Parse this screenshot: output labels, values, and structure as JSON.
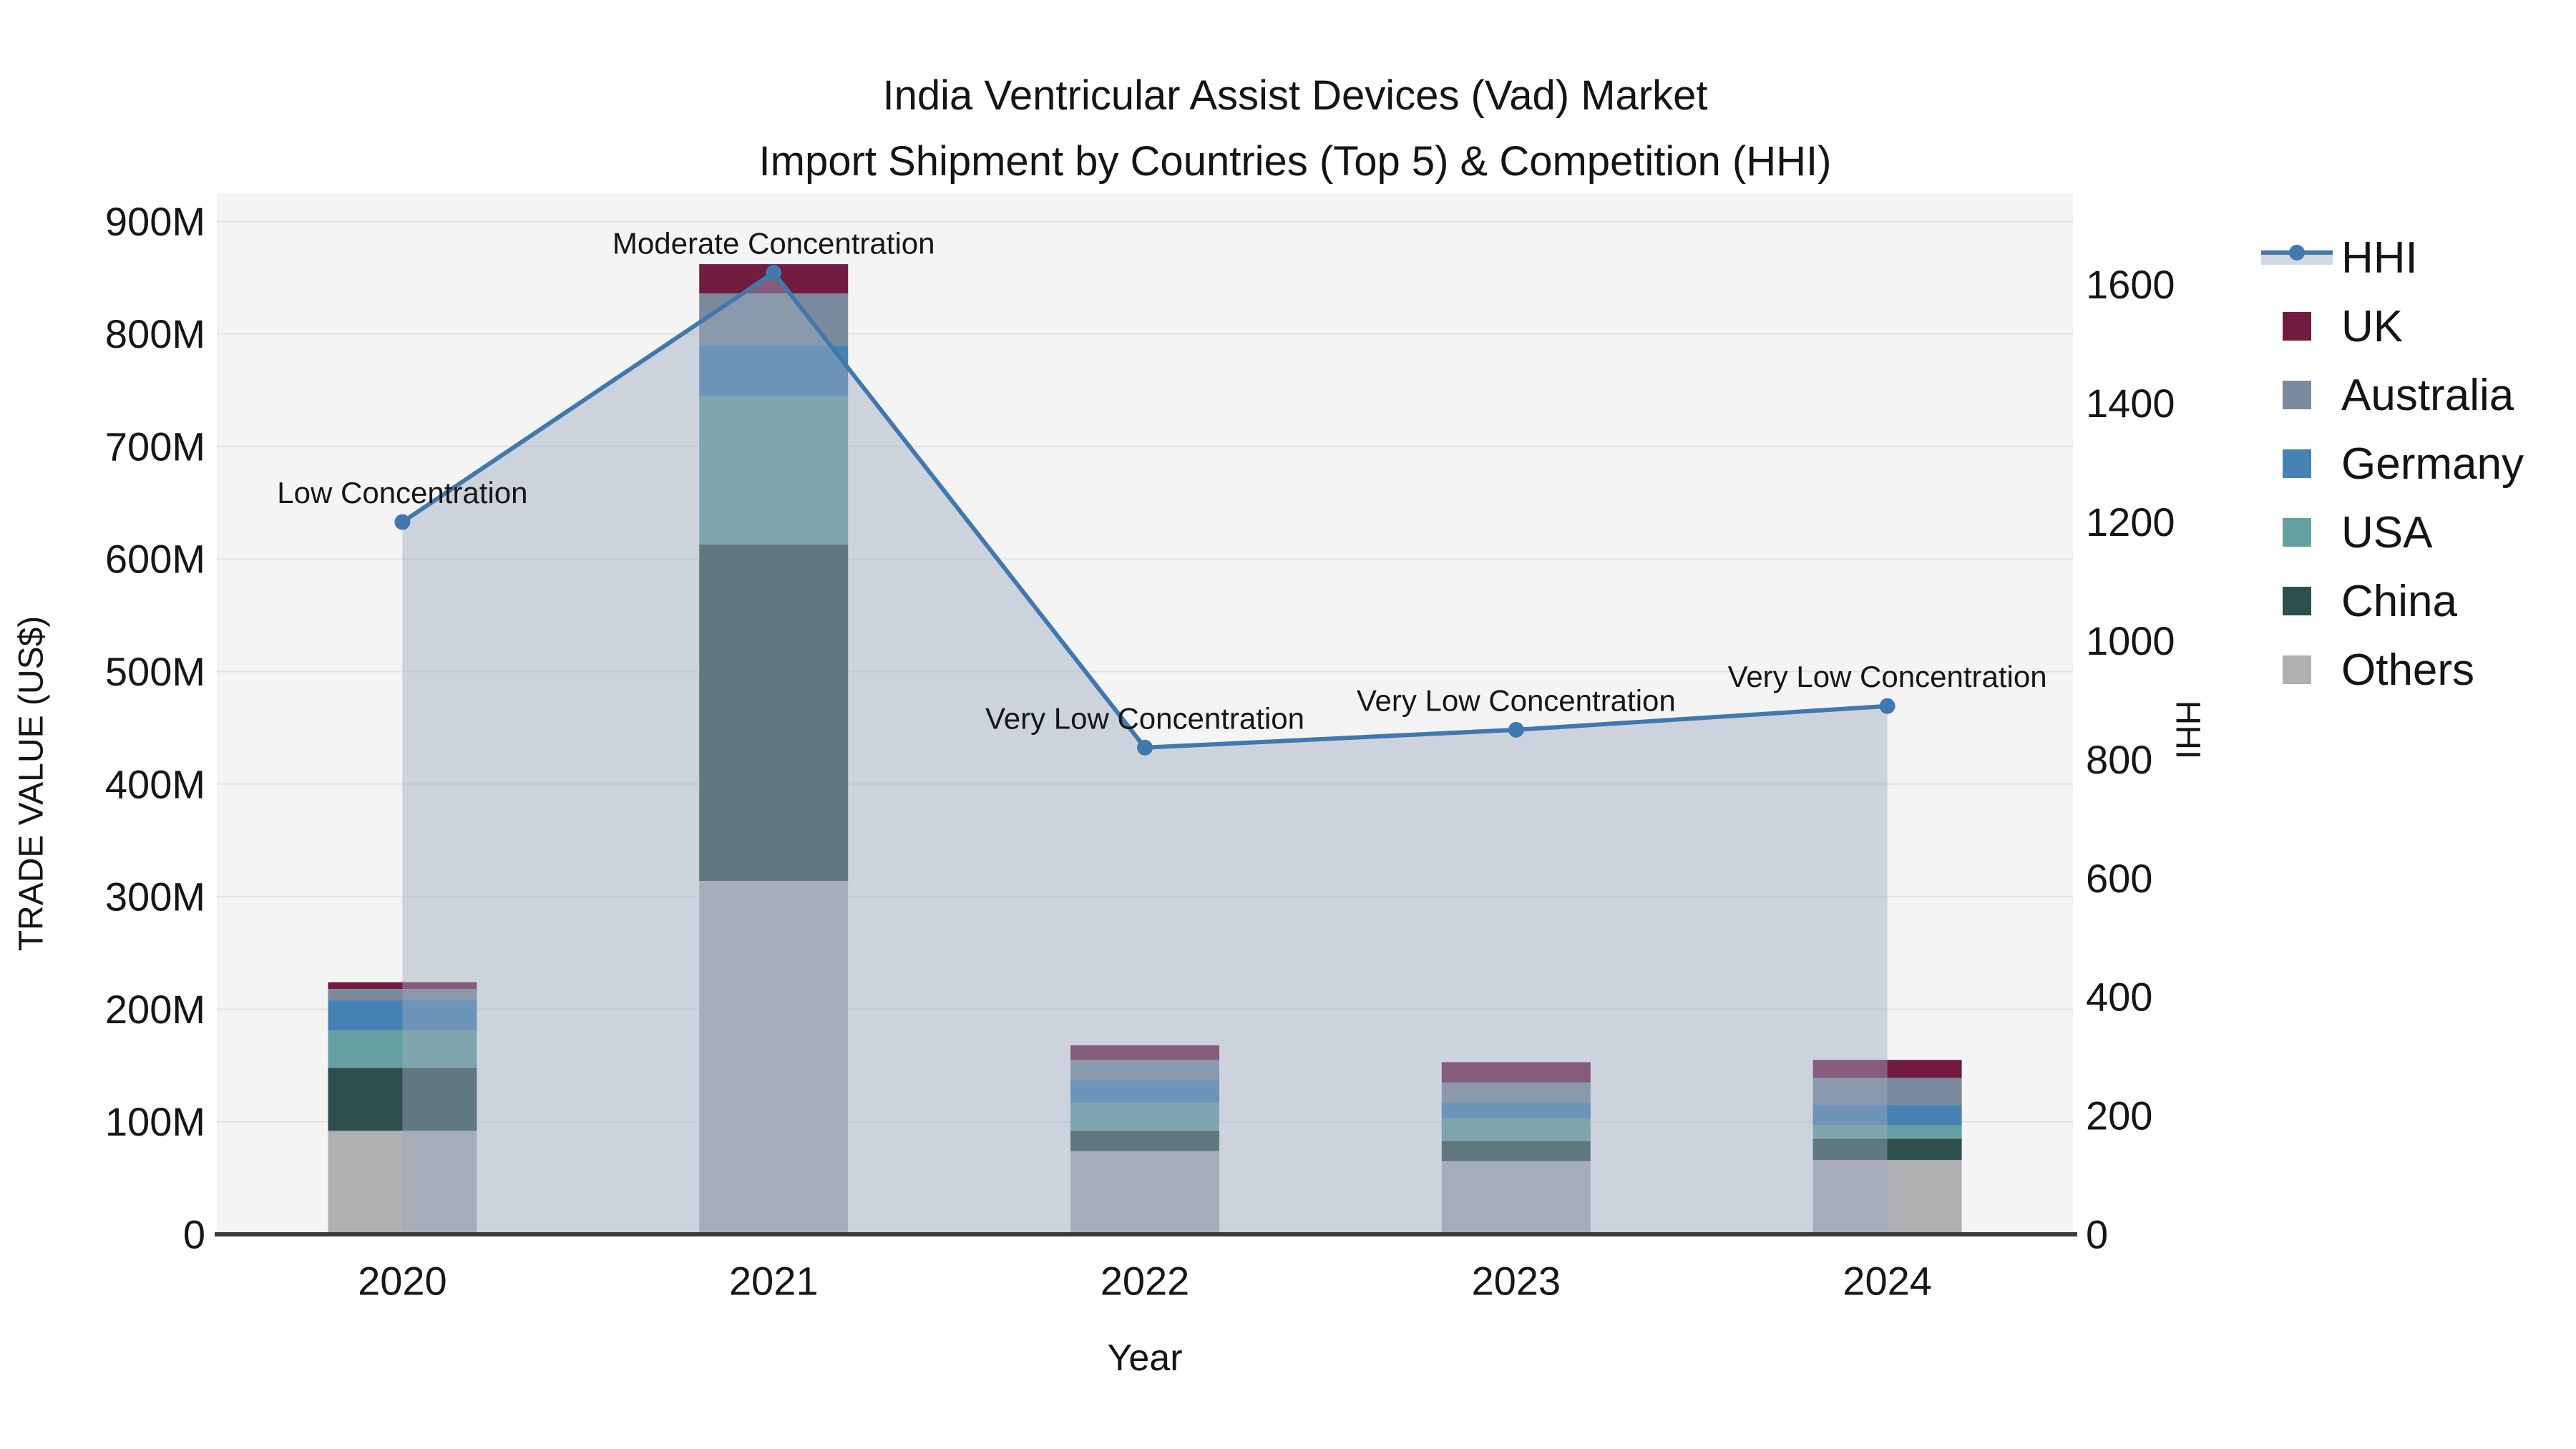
{
  "title": {
    "line1": "India Ventricular Assist Devices (Vad) Market",
    "line2": "Import Shipment by Countries (Top 5) & Competition (HHI)"
  },
  "axes": {
    "x_label": "Year",
    "y_left_label": "TRADE VALUE (US$)",
    "y_right_label": "HHI"
  },
  "legend": [
    {
      "label": "HHI",
      "type": "line",
      "color": "#4178ae"
    },
    {
      "label": "UK",
      "type": "square",
      "color": "#721c40"
    },
    {
      "label": "Australia",
      "type": "square",
      "color": "#7b8a9c"
    },
    {
      "label": "Germany",
      "type": "square",
      "color": "#4681b4"
    },
    {
      "label": "USA",
      "type": "square",
      "color": "#66a0a3"
    },
    {
      "label": "China",
      "type": "square",
      "color": "#2e504c"
    },
    {
      "label": "Others",
      "type": "square",
      "color": "#aeb0b2"
    }
  ],
  "chart_data": {
    "type": "bar",
    "subtype": "stacked-bars-with-line",
    "categories": [
      "2020",
      "2021",
      "2022",
      "2023",
      "2024"
    ],
    "series": [
      {
        "name": "Others",
        "color": "#aeb0b2",
        "values": [
          92,
          314,
          74,
          65,
          66
        ]
      },
      {
        "name": "China",
        "color": "#2e504c",
        "values": [
          56,
          299,
          18,
          18,
          19
        ]
      },
      {
        "name": "USA",
        "color": "#66a0a3",
        "values": [
          33,
          132,
          25,
          20,
          12
        ]
      },
      {
        "name": "Germany",
        "color": "#4681b4",
        "values": [
          27,
          45,
          20,
          14,
          18
        ]
      },
      {
        "name": "Australia",
        "color": "#7b8a9c",
        "values": [
          10,
          46,
          18,
          18,
          24
        ]
      },
      {
        "name": "UK",
        "color": "#721c40",
        "values": [
          6,
          26,
          13,
          18,
          16
        ]
      }
    ],
    "bar_totals_musd": [
      224,
      862,
      168,
      153,
      155
    ],
    "line": {
      "name": "HHI",
      "color": "#4178ae",
      "area_fill": "#9daabe",
      "area_opacity": 0.45,
      "values": [
        1200,
        1620,
        820,
        850,
        890
      ],
      "annotations": [
        "Low Concentration",
        "Moderate Concentration",
        "Very Low Concentration",
        "Very Low Concentration",
        "Very Low Concentration"
      ]
    },
    "y_left": {
      "title": "TRADE VALUE (US$)",
      "max": 925,
      "tick_values": [
        0,
        100,
        200,
        300,
        400,
        500,
        600,
        700,
        800,
        900
      ],
      "tick_labels": [
        "0",
        "100M",
        "200M",
        "300M",
        "400M",
        "500M",
        "600M",
        "700M",
        "800M",
        "900M"
      ]
    },
    "y_right": {
      "title": "HHI",
      "max": 1754,
      "tick_values": [
        0,
        200,
        400,
        600,
        800,
        1000,
        1200,
        1400,
        1600
      ],
      "tick_labels": [
        "0",
        "200",
        "400",
        "600",
        "800",
        "1000",
        "1200",
        "1400",
        "1600"
      ]
    },
    "xlabel": "Year",
    "grid": true,
    "plot_bg": "#f4f4f5",
    "gridline_color": "#e2e2e5",
    "axis_line_color": "#3b3b3b",
    "legend_position": "right"
  }
}
